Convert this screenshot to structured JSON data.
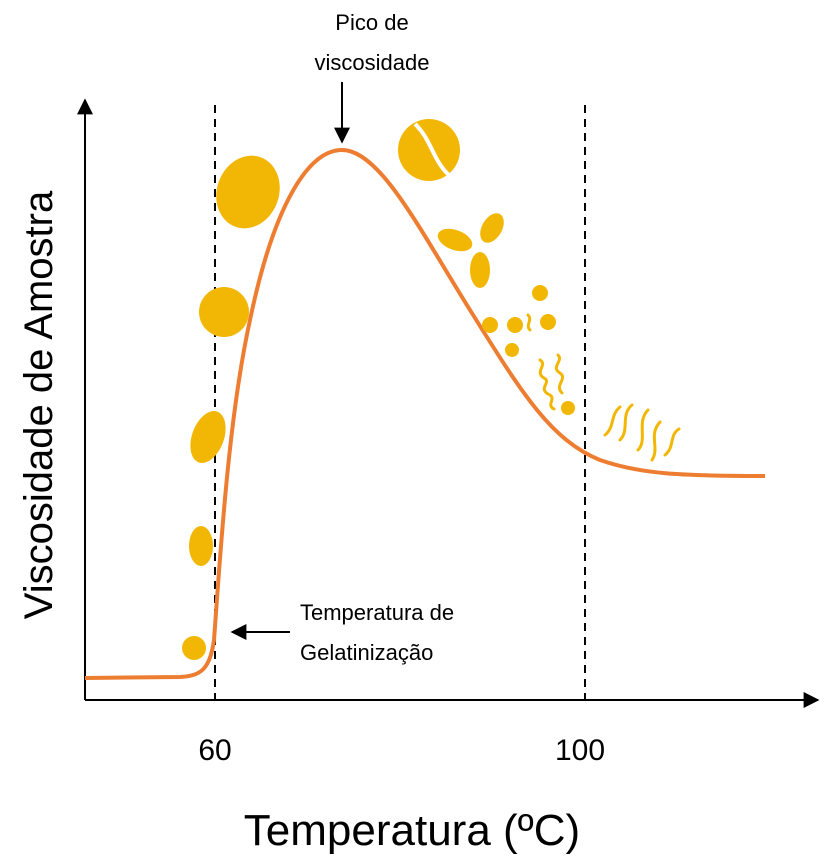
{
  "y_axis_label": "Viscosidade de Amostra",
  "x_axis_label": "Temperatura (ºC)",
  "x_ticks": [
    60,
    100
  ],
  "annotations": {
    "peak": [
      "Pico de",
      "viscosidade"
    ],
    "gelatinization": [
      "Temperatura de",
      "Gelatinização"
    ]
  }
}
